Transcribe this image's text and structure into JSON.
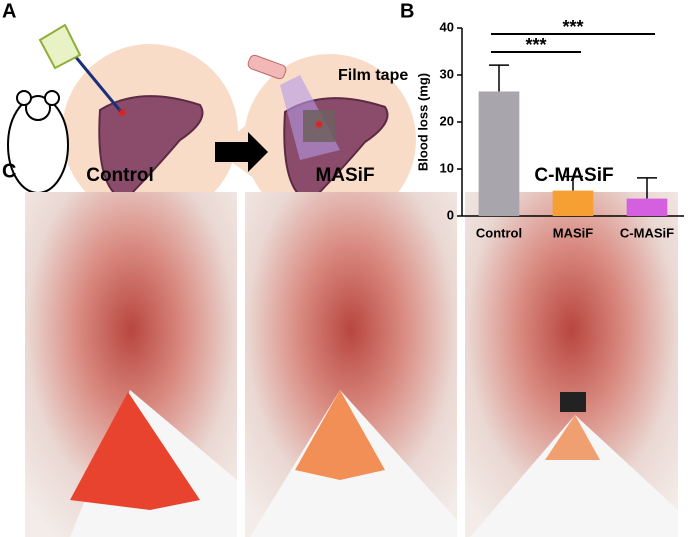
{
  "panels": {
    "labels": [
      "A",
      "B",
      "C"
    ],
    "illustration_label": "Film tape",
    "photo_titles": [
      "Control",
      "MASiF",
      "C-MASiF"
    ]
  },
  "chart_data": {
    "type": "bar",
    "y_label": "Blood loss (mg)",
    "categories": [
      "Control",
      "MASiF",
      "C-MASiF"
    ],
    "values": [
      26.5,
      5.4,
      3.7
    ],
    "errors": [
      5.6,
      3.0,
      4.4
    ],
    "colors": [
      "#a8a5ad",
      "#f6a034",
      "#d460e0"
    ],
    "ylim": [
      0,
      40
    ],
    "yticks": [
      0,
      10,
      20,
      30,
      40
    ],
    "annotations": [
      "***",
      "***"
    ]
  }
}
